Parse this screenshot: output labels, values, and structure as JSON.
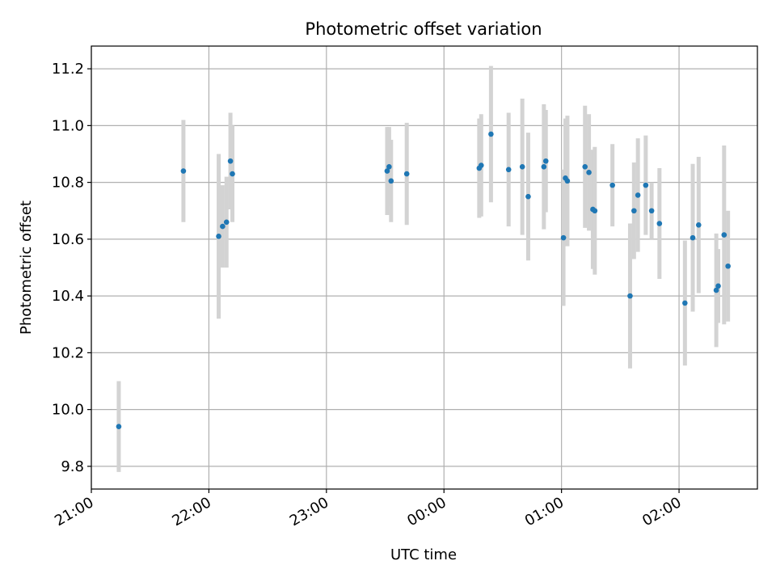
{
  "chart_data": {
    "type": "scatter",
    "title": "Photometric offset variation",
    "xlabel": "UTC time",
    "ylabel": "Photometric offset",
    "x_axis": {
      "kind": "time",
      "start": "21:00",
      "end": "02:40",
      "ticks": [
        "21:00",
        "22:00",
        "23:00",
        "00:00",
        "01:00",
        "02:00"
      ]
    },
    "ylim": [
      9.72,
      11.28
    ],
    "yticks": [
      "9.8",
      "10.0",
      "10.2",
      "10.4",
      "10.6",
      "10.8",
      "11.0",
      "11.2"
    ],
    "grid": true,
    "colors": {
      "point": "#1f77b4",
      "errorbar": "#d3d3d3",
      "grid": "#b0b0b0"
    },
    "points": [
      {
        "t": "21:14",
        "y": 9.94,
        "err": 0.16
      },
      {
        "t": "21:47",
        "y": 10.84,
        "err": 0.18
      },
      {
        "t": "22:05",
        "y": 10.61,
        "err": 0.29
      },
      {
        "t": "22:07",
        "y": 10.645,
        "err": 0.145
      },
      {
        "t": "22:09",
        "y": 10.66,
        "err": 0.16
      },
      {
        "t": "22:11",
        "y": 10.875,
        "err": 0.17
      },
      {
        "t": "22:12",
        "y": 10.83,
        "err": 0.17
      },
      {
        "t": "23:31",
        "y": 10.84,
        "err": 0.155
      },
      {
        "t": "23:32",
        "y": 10.855,
        "err": 0.14
      },
      {
        "t": "23:33",
        "y": 10.805,
        "err": 0.145
      },
      {
        "t": "23:41",
        "y": 10.83,
        "err": 0.18
      },
      {
        "t": "00:18",
        "y": 10.85,
        "err": 0.175
      },
      {
        "t": "00:19",
        "y": 10.86,
        "err": 0.18
      },
      {
        "t": "00:24",
        "y": 10.97,
        "err": 0.24
      },
      {
        "t": "00:33",
        "y": 10.845,
        "err": 0.2
      },
      {
        "t": "00:40",
        "y": 10.855,
        "err": 0.24
      },
      {
        "t": "00:43",
        "y": 10.75,
        "err": 0.225
      },
      {
        "t": "00:51",
        "y": 10.855,
        "err": 0.22
      },
      {
        "t": "00:52",
        "y": 10.875,
        "err": 0.18
      },
      {
        "t": "01:01",
        "y": 10.605,
        "err": 0.24
      },
      {
        "t": "01:02",
        "y": 10.815,
        "err": 0.21
      },
      {
        "t": "01:03",
        "y": 10.805,
        "err": 0.23
      },
      {
        "t": "01:12",
        "y": 10.855,
        "err": 0.215
      },
      {
        "t": "01:14",
        "y": 10.835,
        "err": 0.205
      },
      {
        "t": "01:16",
        "y": 10.705,
        "err": 0.21
      },
      {
        "t": "01:17",
        "y": 10.7,
        "err": 0.225
      },
      {
        "t": "01:26",
        "y": 10.79,
        "err": 0.145
      },
      {
        "t": "01:35",
        "y": 10.4,
        "err": 0.255
      },
      {
        "t": "01:37",
        "y": 10.7,
        "err": 0.17
      },
      {
        "t": "01:39",
        "y": 10.755,
        "err": 0.2
      },
      {
        "t": "01:43",
        "y": 10.79,
        "err": 0.175
      },
      {
        "t": "01:46",
        "y": 10.7,
        "err": 0.1
      },
      {
        "t": "01:50",
        "y": 10.655,
        "err": 0.195
      },
      {
        "t": "02:03",
        "y": 10.375,
        "err": 0.22
      },
      {
        "t": "02:07",
        "y": 10.605,
        "err": 0.26
      },
      {
        "t": "02:10",
        "y": 10.65,
        "err": 0.24
      },
      {
        "t": "02:19",
        "y": 10.42,
        "err": 0.2
      },
      {
        "t": "02:20",
        "y": 10.435,
        "err": 0.13
      },
      {
        "t": "02:23",
        "y": 10.615,
        "err": 0.315
      },
      {
        "t": "02:25",
        "y": 10.505,
        "err": 0.195
      }
    ]
  }
}
